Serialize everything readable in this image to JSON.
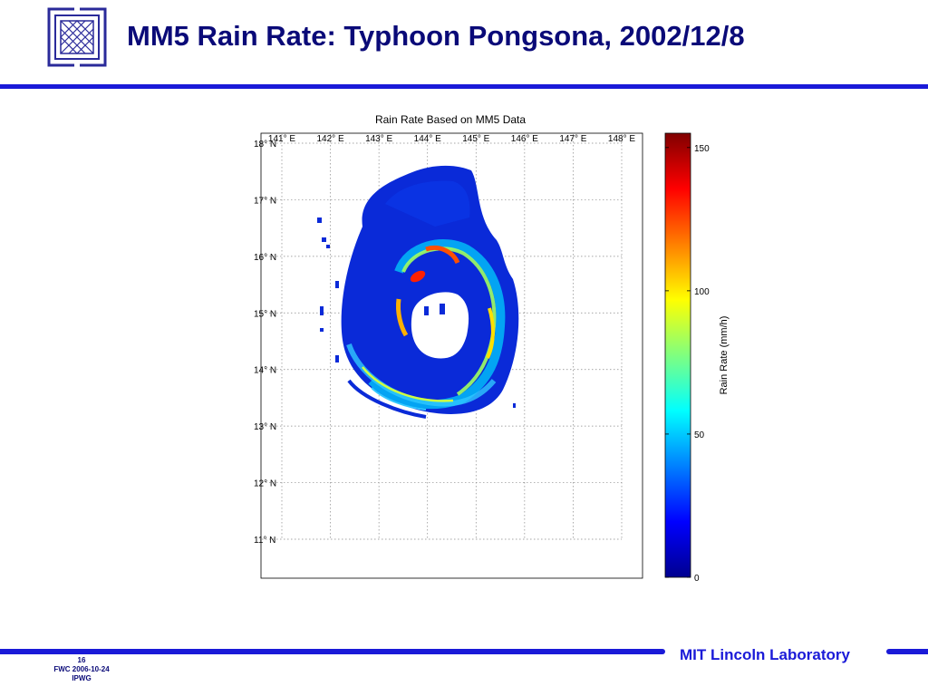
{
  "slide": {
    "title": "MM5 Rain Rate: Typhoon Pongsona, 2002/12/8",
    "lab_name": "MIT Lincoln Laboratory",
    "page_number": "16",
    "footer_line1": "FWC 2006-10-24",
    "footer_line2": "IPWG"
  },
  "colors": {
    "accent": "#1a1ad8",
    "title": "#0a0a78"
  },
  "chart_data": {
    "type": "heatmap",
    "title": "Rain Rate Based on MM5 Data",
    "x_ticks": [
      141,
      142,
      143,
      144,
      145,
      146,
      147,
      148
    ],
    "x_tick_labels": [
      "141° E",
      "142° E",
      "143° E",
      "144° E",
      "145° E",
      "146° E",
      "147° E",
      "148° E"
    ],
    "y_ticks": [
      18,
      17,
      16,
      15,
      14,
      13,
      12,
      11
    ],
    "y_tick_labels": [
      "18° N",
      "17° N",
      "16° N",
      "15° N",
      "14° N",
      "13° N",
      "12° N",
      "11° N"
    ],
    "xlim": [
      141,
      148.5
    ],
    "ylim": [
      10.35,
      18.1
    ],
    "grid": true,
    "grid_style": "dotted",
    "colormap": "jet",
    "colorbar": {
      "label": "Rain Rate (mm/h)",
      "range": [
        0,
        155
      ],
      "ticks": [
        0,
        50,
        100,
        150
      ],
      "tick_labels": [
        "0",
        "50",
        "100",
        "150"
      ]
    },
    "description_values": {
      "eye_center_lon": 144.3,
      "eye_center_lat": 14.9,
      "max_rain_rate": 140
    }
  }
}
